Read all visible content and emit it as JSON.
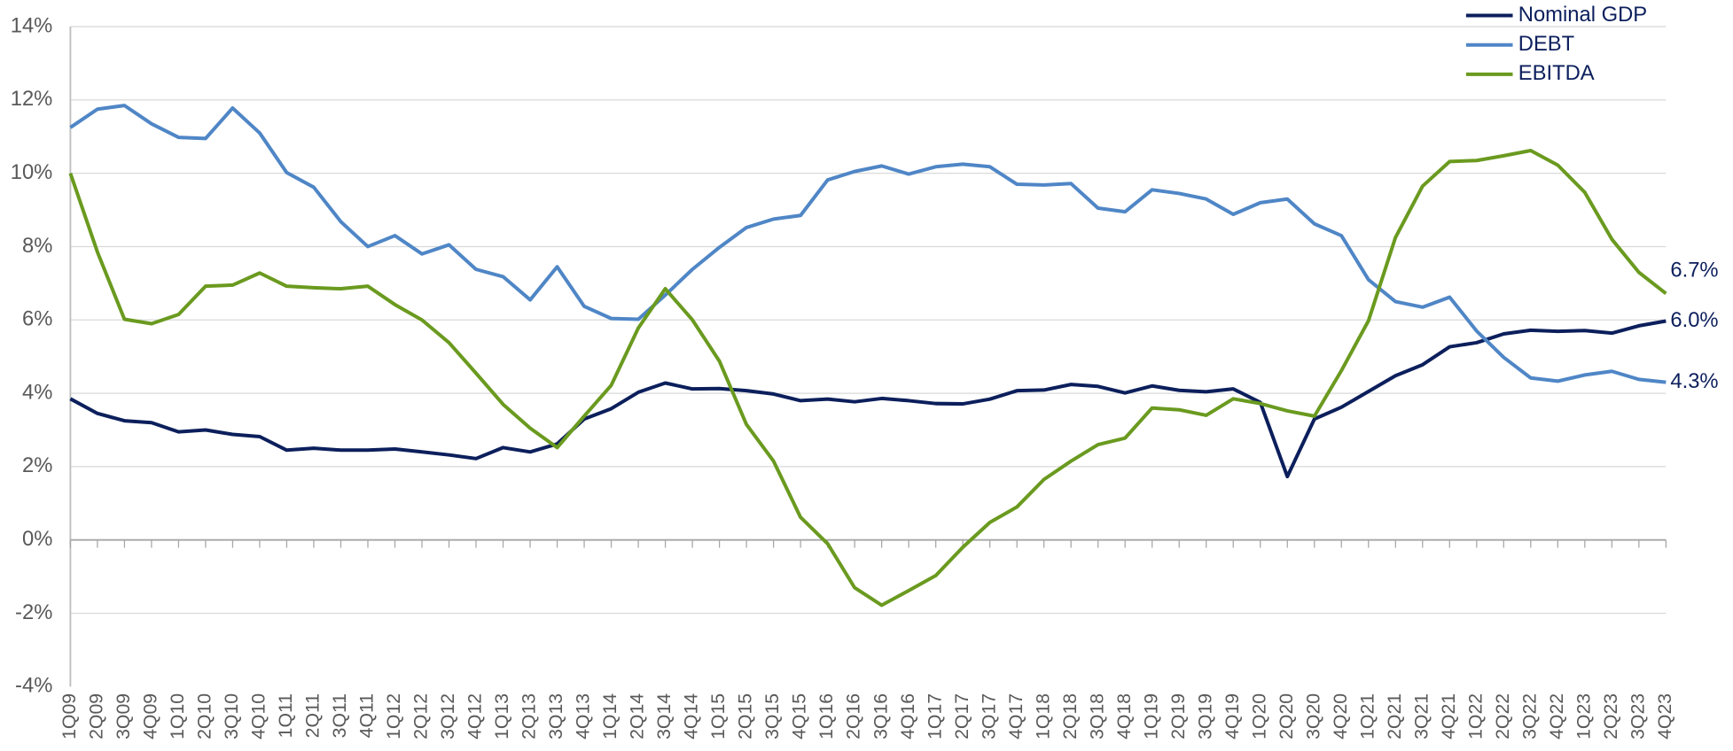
{
  "chart_data": {
    "type": "line",
    "categories": [
      "1Q09",
      "2Q09",
      "3Q09",
      "4Q09",
      "1Q10",
      "2Q10",
      "3Q10",
      "4Q10",
      "1Q11",
      "2Q11",
      "3Q11",
      "4Q11",
      "1Q12",
      "2Q12",
      "3Q12",
      "4Q12",
      "1Q13",
      "2Q13",
      "3Q13",
      "4Q13",
      "1Q14",
      "2Q14",
      "3Q14",
      "4Q14",
      "1Q15",
      "2Q15",
      "3Q15",
      "4Q15",
      "1Q16",
      "2Q16",
      "3Q16",
      "4Q16",
      "1Q17",
      "2Q17",
      "3Q17",
      "4Q17",
      "1Q18",
      "2Q18",
      "3Q18",
      "4Q18",
      "1Q19",
      "2Q19",
      "3Q19",
      "4Q19",
      "1Q20",
      "2Q20",
      "3Q20",
      "4Q20",
      "1Q21",
      "2Q21",
      "3Q21",
      "4Q21",
      "1Q22",
      "2Q22",
      "3Q22",
      "4Q22",
      "1Q23",
      "2Q23",
      "3Q23",
      "4Q23"
    ],
    "series": [
      {
        "name": "Nominal GDP",
        "color": "#0c1f5c",
        "end_label": "6.0%",
        "values": [
          3.85,
          3.45,
          3.25,
          3.2,
          2.95,
          3.0,
          2.88,
          2.82,
          2.45,
          2.5,
          2.45,
          2.45,
          2.48,
          2.4,
          2.32,
          2.22,
          2.52,
          2.4,
          2.62,
          3.3,
          3.58,
          4.03,
          4.28,
          4.12,
          4.13,
          4.07,
          3.98,
          3.8,
          3.84,
          3.77,
          3.86,
          3.8,
          3.72,
          3.71,
          3.84,
          4.07,
          4.09,
          4.24,
          4.19,
          4.01,
          4.2,
          4.08,
          4.04,
          4.12,
          3.75,
          1.73,
          3.3,
          3.62,
          4.05,
          4.48,
          4.78,
          5.27,
          5.38,
          5.62,
          5.72,
          5.69,
          5.71,
          5.64,
          5.84,
          5.97
        ]
      },
      {
        "name": "DEBT",
        "color": "#4f86c6",
        "end_label": "4.3%",
        "values": [
          11.25,
          11.75,
          11.85,
          11.35,
          10.98,
          10.95,
          11.78,
          11.1,
          10.02,
          9.62,
          8.68,
          8.0,
          8.3,
          7.8,
          8.05,
          7.38,
          7.18,
          6.55,
          7.45,
          6.37,
          6.04,
          6.02,
          6.68,
          7.38,
          7.98,
          8.52,
          8.75,
          8.85,
          9.82,
          10.05,
          10.2,
          9.98,
          10.18,
          10.25,
          10.18,
          9.7,
          9.68,
          9.72,
          9.05,
          8.95,
          9.55,
          9.45,
          9.3,
          8.88,
          9.2,
          9.3,
          8.62,
          8.3,
          7.1,
          6.5,
          6.35,
          6.62,
          5.7,
          4.98,
          4.42,
          4.33,
          4.5,
          4.6,
          4.38,
          4.3
        ]
      },
      {
        "name": "EBITDA",
        "color": "#6a9a1f",
        "end_label": "6.7%",
        "values": [
          10.0,
          7.85,
          6.02,
          5.9,
          6.15,
          6.92,
          6.95,
          7.28,
          6.92,
          6.88,
          6.85,
          6.92,
          6.42,
          6.0,
          5.38,
          4.55,
          3.7,
          3.05,
          2.52,
          3.38,
          4.22,
          5.78,
          6.85,
          6.0,
          4.88,
          3.15,
          2.15,
          0.62,
          -0.1,
          -1.3,
          -1.78,
          -1.38,
          -0.97,
          -0.2,
          0.48,
          0.9,
          1.65,
          2.15,
          2.6,
          2.78,
          3.6,
          3.55,
          3.4,
          3.85,
          3.72,
          3.52,
          3.38,
          4.62,
          5.98,
          8.25,
          9.65,
          10.32,
          10.35,
          10.48,
          10.62,
          10.22,
          9.48,
          8.2,
          7.3,
          6.72
        ]
      }
    ],
    "ylim": [
      -4,
      14
    ],
    "yticks": [
      {
        "value": -4,
        "label": "-4%"
      },
      {
        "value": -2,
        "label": "-2%"
      },
      {
        "value": 0,
        "label": "0%"
      },
      {
        "value": 2,
        "label": "2%"
      },
      {
        "value": 4,
        "label": "4%"
      },
      {
        "value": 6,
        "label": "6%"
      },
      {
        "value": 8,
        "label": "8%"
      },
      {
        "value": 10,
        "label": "10%"
      },
      {
        "value": 12,
        "label": "12%"
      },
      {
        "value": 14,
        "label": "14%"
      }
    ],
    "grid": true,
    "legend": "top-right"
  }
}
